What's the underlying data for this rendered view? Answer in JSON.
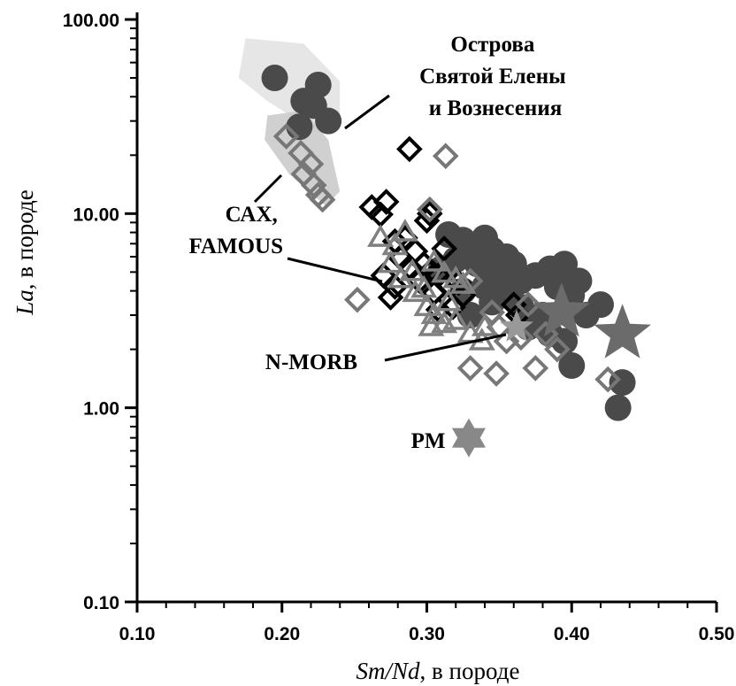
{
  "chart_data": {
    "type": "scatter",
    "title": "",
    "x_label": {
      "main": "Sm/Nd",
      "suffix": ", в породе"
    },
    "y_label": {
      "main": "La",
      "suffix": ", в породе"
    },
    "x_axis": {
      "scale": "linear",
      "range": [
        0.1,
        0.5
      ],
      "ticks": [
        0.1,
        0.2,
        0.3,
        0.4,
        0.5
      ],
      "tick_labels": [
        "0.10",
        "0.20",
        "0.30",
        "0.40",
        "0.50"
      ]
    },
    "y_axis": {
      "scale": "log",
      "range": [
        0.1,
        100.0
      ],
      "ticks": [
        0.1,
        1,
        10,
        100
      ],
      "tick_labels": [
        "0.10",
        "1.00",
        "10.00",
        "100.00"
      ]
    },
    "grid": false,
    "annotations": [
      {
        "id": "islands",
        "lines": [
          "Острова",
          "Святой Елены",
          "и Вознесения"
        ]
      },
      {
        "id": "cax",
        "lines": [
          "САХ,",
          "FAMOUS"
        ]
      },
      {
        "id": "nmorb",
        "lines": [
          "N-MORB"
        ]
      },
      {
        "id": "pm",
        "lines": [
          "PM"
        ]
      }
    ],
    "fields": [
      {
        "name": "islands-field",
        "points": [
          [
            0.175,
            80
          ],
          [
            0.215,
            75
          ],
          [
            0.24,
            48
          ],
          [
            0.24,
            30
          ],
          [
            0.225,
            26
          ],
          [
            0.19,
            38
          ],
          [
            0.17,
            50
          ]
        ],
        "color": "#e2e2e2"
      },
      {
        "name": "cax-field",
        "points": [
          [
            0.19,
            32
          ],
          [
            0.215,
            34
          ],
          [
            0.232,
            24
          ],
          [
            0.24,
            13
          ],
          [
            0.23,
            11
          ],
          [
            0.205,
            16
          ],
          [
            0.188,
            24
          ]
        ],
        "color": "#c8c8c8"
      }
    ],
    "series": [
      {
        "marker": "circle",
        "fill": "#4a4a4a",
        "size": 15,
        "points": [
          [
            0.195,
            50
          ],
          [
            0.225,
            46
          ],
          [
            0.215,
            38
          ],
          [
            0.212,
            28
          ],
          [
            0.232,
            30
          ],
          [
            0.222,
            36
          ],
          [
            0.315,
            7.8
          ],
          [
            0.325,
            7.3
          ],
          [
            0.34,
            7.5
          ],
          [
            0.345,
            6.5
          ],
          [
            0.355,
            6.0
          ],
          [
            0.36,
            5.5
          ],
          [
            0.33,
            6.5
          ],
          [
            0.32,
            5.8
          ],
          [
            0.335,
            5.5
          ],
          [
            0.35,
            5.0
          ],
          [
            0.365,
            4.5
          ],
          [
            0.34,
            4.2
          ],
          [
            0.325,
            4.0
          ],
          [
            0.355,
            3.8
          ],
          [
            0.345,
            3.5
          ],
          [
            0.365,
            3.3
          ],
          [
            0.375,
            4.8
          ],
          [
            0.385,
            5.2
          ],
          [
            0.39,
            4.2
          ],
          [
            0.395,
            5.5
          ],
          [
            0.4,
            3.8
          ],
          [
            0.405,
            4.5
          ],
          [
            0.41,
            3.0
          ],
          [
            0.42,
            3.4
          ],
          [
            0.395,
            2.2
          ],
          [
            0.4,
            1.65
          ],
          [
            0.385,
            2.4
          ],
          [
            0.38,
            3.0
          ],
          [
            0.37,
            2.6
          ],
          [
            0.435,
            1.35
          ],
          [
            0.432,
            1.0
          ],
          [
            0.33,
            3.0
          ],
          [
            0.31,
            5.2
          ]
        ]
      },
      {
        "marker": "diamond",
        "stroke": "#000000",
        "size": 12,
        "points": [
          [
            0.288,
            21.5
          ],
          [
            0.272,
            11.5
          ],
          [
            0.262,
            10.8
          ],
          [
            0.268,
            9.9
          ],
          [
            0.278,
            7.2
          ],
          [
            0.285,
            7.5
          ],
          [
            0.282,
            5.9
          ],
          [
            0.288,
            5.3
          ],
          [
            0.292,
            6.4
          ],
          [
            0.298,
            5.5
          ],
          [
            0.302,
            5.0
          ],
          [
            0.295,
            4.5
          ],
          [
            0.278,
            4.2
          ],
          [
            0.275,
            3.7
          ],
          [
            0.302,
            10.0
          ],
          [
            0.3,
            9.2
          ],
          [
            0.312,
            6.6
          ],
          [
            0.308,
            4.8
          ],
          [
            0.315,
            4.3
          ],
          [
            0.322,
            4.4
          ],
          [
            0.318,
            3.3
          ],
          [
            0.308,
            3.2
          ],
          [
            0.305,
            3.9
          ],
          [
            0.325,
            3.8
          ],
          [
            0.36,
            3.4
          ],
          [
            0.363,
            3.0
          ],
          [
            0.27,
            4.8
          ]
        ]
      },
      {
        "marker": "diamond",
        "stroke": "#777777",
        "size": 12,
        "points": [
          [
            0.203,
            25
          ],
          [
            0.213,
            20.5
          ],
          [
            0.22,
            18
          ],
          [
            0.215,
            16
          ],
          [
            0.222,
            14
          ],
          [
            0.225,
            12.5
          ],
          [
            0.228,
            11.8
          ],
          [
            0.252,
            3.6
          ],
          [
            0.313,
            19.8
          ],
          [
            0.302,
            10.5
          ],
          [
            0.33,
            1.6
          ],
          [
            0.348,
            1.5
          ],
          [
            0.375,
            1.6
          ],
          [
            0.355,
            2.2
          ],
          [
            0.365,
            2.3
          ],
          [
            0.425,
            1.4
          ],
          [
            0.37,
            3.4
          ],
          [
            0.382,
            2.4
          ],
          [
            0.39,
            2.0
          ],
          [
            0.345,
            3.1
          ],
          [
            0.33,
            4.5
          ],
          [
            0.35,
            2.6
          ]
        ]
      },
      {
        "marker": "triangle",
        "stroke": "#808080",
        "size": 12,
        "points": [
          [
            0.268,
            7.5
          ],
          [
            0.278,
            6.8
          ],
          [
            0.285,
            8.0
          ],
          [
            0.275,
            5.5
          ],
          [
            0.282,
            4.6
          ],
          [
            0.29,
            5.0
          ],
          [
            0.298,
            4.1
          ],
          [
            0.305,
            5.6
          ],
          [
            0.312,
            4.9
          ],
          [
            0.32,
            4.6
          ],
          [
            0.315,
            3.5
          ],
          [
            0.3,
            3.3
          ],
          [
            0.292,
            3.9
          ],
          [
            0.305,
            3.0
          ],
          [
            0.32,
            2.8
          ],
          [
            0.33,
            2.4
          ],
          [
            0.338,
            2.2
          ],
          [
            0.312,
            2.7
          ],
          [
            0.34,
            2.6
          ],
          [
            0.325,
            4.3
          ],
          [
            0.303,
            2.6
          ]
        ]
      },
      {
        "marker": "star",
        "fill": "#6b6b6b",
        "size": 34,
        "points": [
          [
            0.435,
            2.4
          ],
          [
            0.393,
            3.1
          ]
        ]
      },
      {
        "marker": "star",
        "fill": "#999999",
        "size": 20,
        "points": [
          [
            0.362,
            2.6
          ]
        ]
      },
      {
        "marker": "hexstar",
        "fill": "#888888",
        "size": 22,
        "points": [
          [
            0.329,
            0.7
          ]
        ]
      }
    ]
  }
}
